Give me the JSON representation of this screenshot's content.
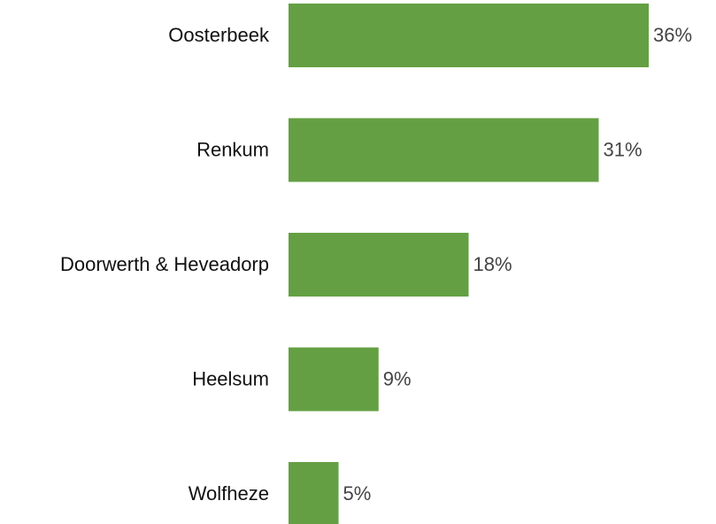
{
  "chart_data": {
    "type": "barh",
    "categories": [
      "Oosterbeek",
      "Renkum",
      "Doorwerth & Heveadorp",
      "Heelsum",
      "Wolfheze"
    ],
    "values": [
      36,
      31,
      18,
      9,
      5
    ],
    "value_labels": [
      "36%",
      "31%",
      "18%",
      "9%",
      "5%"
    ],
    "color": "#64a043"
  }
}
